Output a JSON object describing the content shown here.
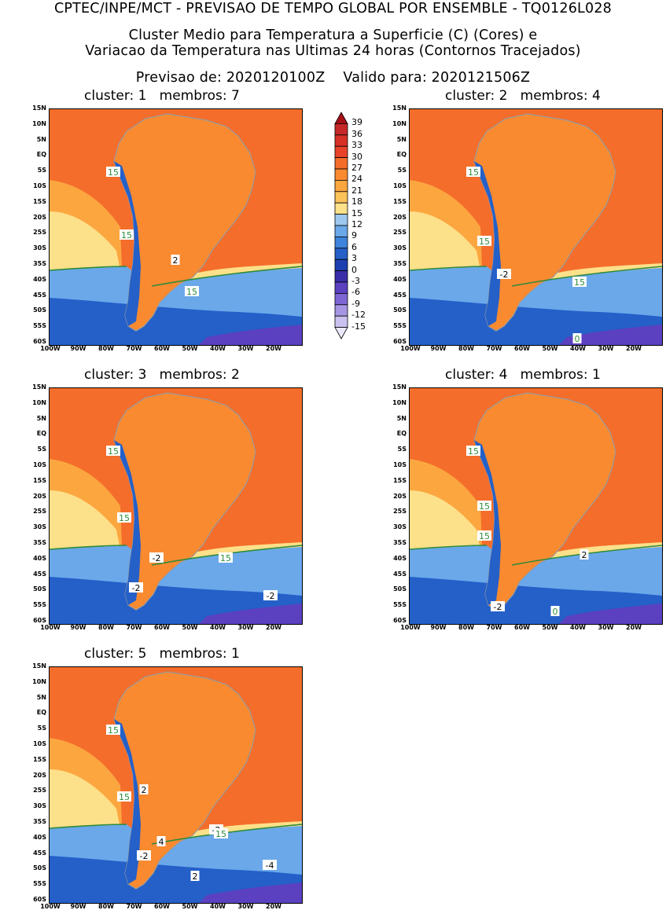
{
  "header": {
    "line1": "CPTEC/INPE/MCT - PREVISAO DE TEMPO GLOBAL POR ENSEMBLE - TQ0126L028",
    "line2": "Cluster Medio para Temperatura a Superficie (C) (Cores) e",
    "line3": "Variacao da Temperatura nas Ultimas 24 horas (Contornos Tracejados)",
    "line4": "Previsao de: 2020120100Z    Valido para: 2020121506Z"
  },
  "panels": [
    {
      "title": "cluster: 1   membros: 7",
      "labels": [
        "15",
        "15",
        "15",
        "2"
      ]
    },
    {
      "title": "cluster: 2   membros: 4",
      "labels": [
        "15",
        "15",
        "-2",
        "15",
        "0"
      ]
    },
    {
      "title": "cluster: 3   membros: 2",
      "labels": [
        "15",
        "15",
        "-2",
        "15",
        "-2",
        "-2"
      ]
    },
    {
      "title": "cluster: 4   membros: 1",
      "labels": [
        "15",
        "15",
        "15",
        "2",
        "-2",
        "0"
      ]
    },
    {
      "title": "cluster: 5   membros: 1",
      "labels": [
        "15",
        "2",
        "15",
        "4",
        "-2",
        "15",
        "-2",
        "2",
        "-4"
      ]
    }
  ],
  "lat_ticks": [
    "15N",
    "10N",
    "5N",
    "EQ",
    "5S",
    "10S",
    "15S",
    "20S",
    "25S",
    "30S",
    "35S",
    "40S",
    "45S",
    "50S",
    "55S",
    "60S"
  ],
  "lon_ticks": [
    "100W",
    "90W",
    "80W",
    "70W",
    "60W",
    "50W",
    "40W",
    "30W",
    "20W"
  ],
  "colorbar": {
    "labels": [
      "39",
      "36",
      "33",
      "30",
      "27",
      "24",
      "21",
      "18",
      "15",
      "12",
      "9",
      "6",
      "3",
      "0",
      "-3",
      "-6",
      "-9",
      "-12",
      "-15"
    ],
    "colors": [
      "#a50f15",
      "#c62828",
      "#d73027",
      "#e8432a",
      "#f46d2b",
      "#f98a30",
      "#fca640",
      "#fdc25a",
      "#fde08a",
      "#9ec7f0",
      "#6aa8ea",
      "#3f84dc",
      "#2460c8",
      "#1c3fb0",
      "#3a2da8",
      "#5b40c0",
      "#7f66d4",
      "#a595e2",
      "#cbc1f0",
      "#ece8fb"
    ]
  },
  "colors": {
    "ocean_warm": "#f46d2b",
    "ocean_mid": "#fca640",
    "ocean_cool": "#fde08a",
    "cold_blue": "#6aa8ea",
    "deep_blue": "#2460c8",
    "purple": "#5b40c0",
    "land_hot": "#f98a30",
    "contour15": "#2e8b3a"
  }
}
